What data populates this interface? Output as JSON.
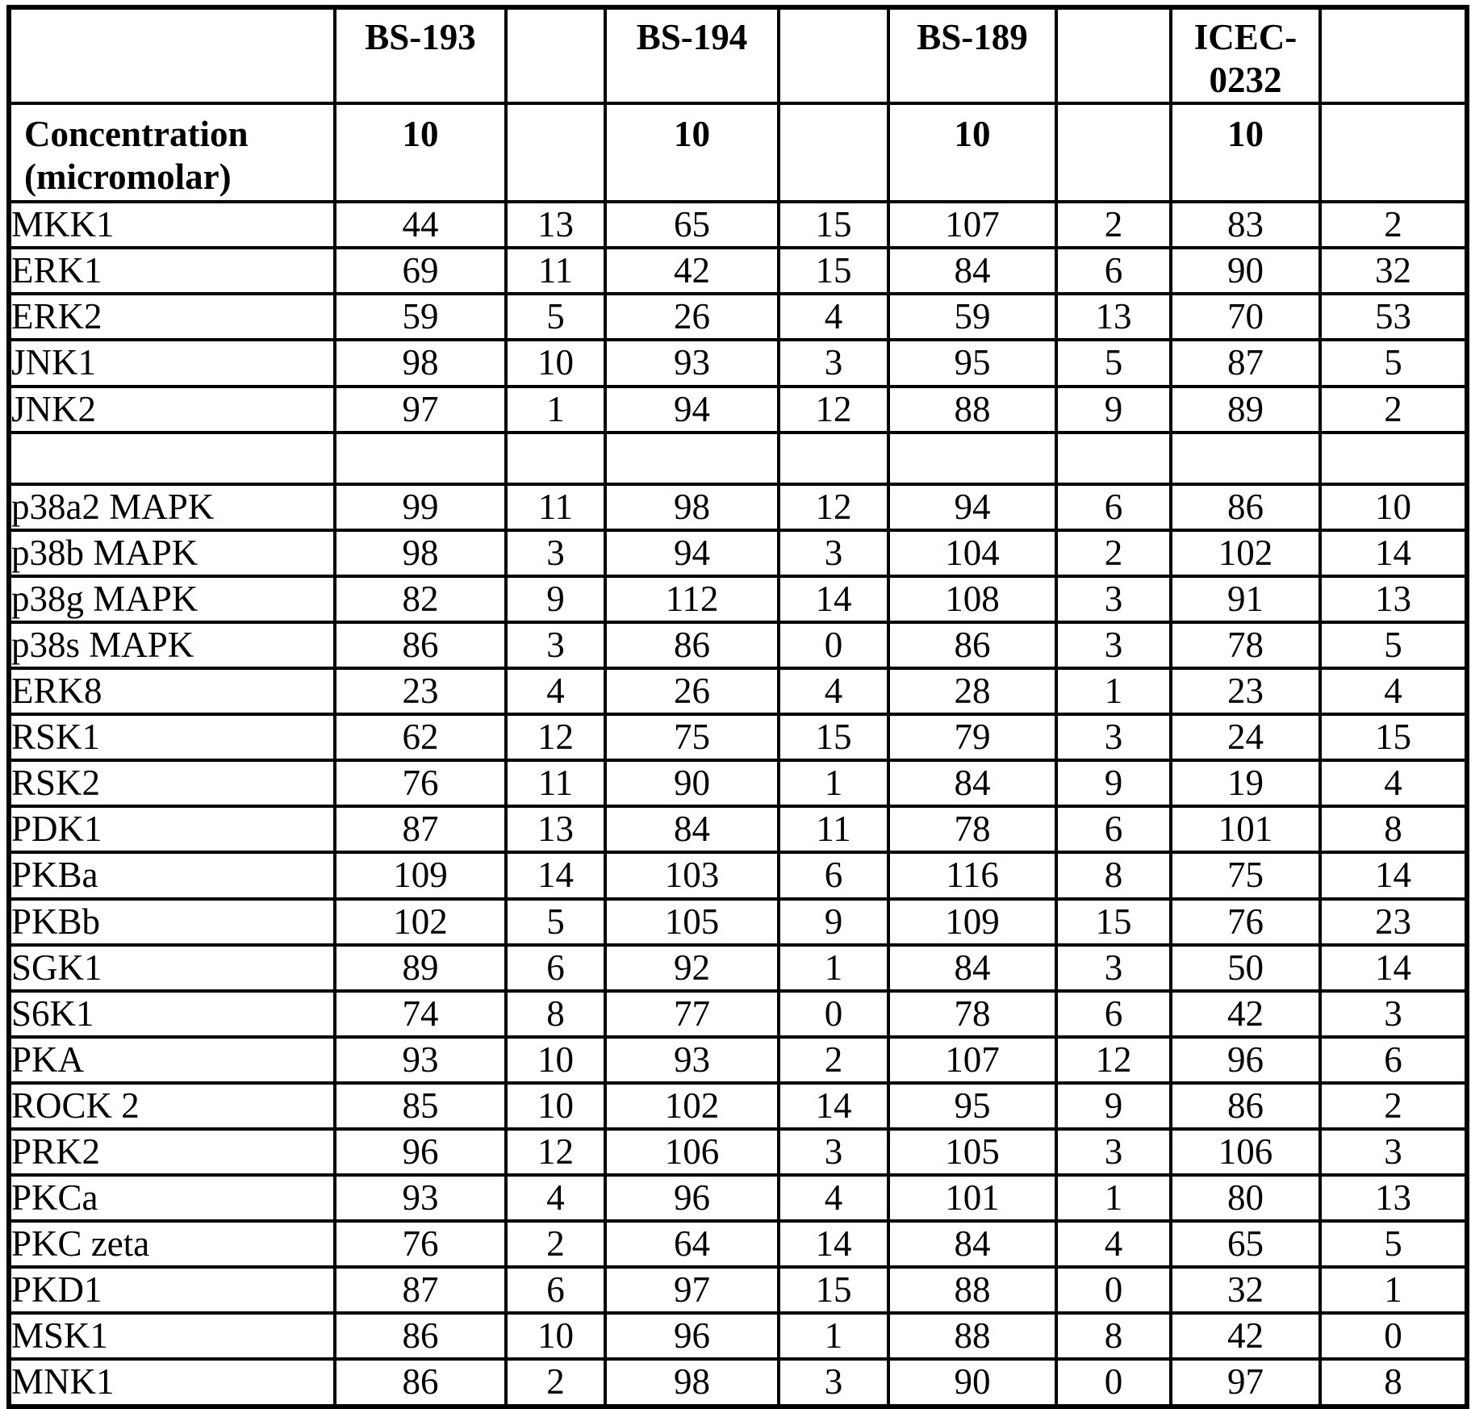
{
  "table": {
    "header_row": [
      "",
      "BS-193",
      "",
      "BS-194",
      "",
      "BS-189",
      "",
      "ICEC-0232",
      ""
    ],
    "concentration": {
      "label": "Concentration (micromolar)",
      "values": [
        "10",
        "",
        "10",
        "",
        "10",
        "",
        "10",
        ""
      ]
    },
    "rows": [
      {
        "kinase": "MKK1",
        "values": [
          "44",
          "13",
          "65",
          "15",
          "107",
          "2",
          "83",
          "2"
        ]
      },
      {
        "kinase": "ERK1",
        "values": [
          "69",
          "11",
          "42",
          "15",
          "84",
          "6",
          "90",
          "32"
        ]
      },
      {
        "kinase": "ERK2",
        "values": [
          "59",
          "5",
          "26",
          "4",
          "59",
          "13",
          "70",
          "53"
        ]
      },
      {
        "kinase": "JNK1",
        "values": [
          "98",
          "10",
          "93",
          "3",
          "95",
          "5",
          "87",
          "5"
        ]
      },
      {
        "kinase": "JNK2",
        "values": [
          "97",
          "1",
          "94",
          "12",
          "88",
          "9",
          "89",
          "2"
        ]
      },
      {
        "kinase": "",
        "values": [
          "",
          "",
          "",
          "",
          "",
          "",
          "",
          ""
        ]
      },
      {
        "kinase": "p38a2 MAPK",
        "values": [
          "99",
          "11",
          "98",
          "12",
          "94",
          "6",
          "86",
          "10"
        ]
      },
      {
        "kinase": "p38b MAPK",
        "values": [
          "98",
          "3",
          "94",
          "3",
          "104",
          "2",
          "102",
          "14"
        ]
      },
      {
        "kinase": "p38g MAPK",
        "values": [
          "82",
          "9",
          "112",
          "14",
          "108",
          "3",
          "91",
          "13"
        ]
      },
      {
        "kinase": "p38s MAPK",
        "values": [
          "86",
          "3",
          "86",
          "0",
          "86",
          "3",
          "78",
          "5"
        ]
      },
      {
        "kinase": "ERK8",
        "values": [
          "23",
          "4",
          "26",
          "4",
          "28",
          "1",
          "23",
          "4"
        ]
      },
      {
        "kinase": "RSK1",
        "values": [
          "62",
          "12",
          "75",
          "15",
          "79",
          "3",
          "24",
          "15"
        ]
      },
      {
        "kinase": "RSK2",
        "values": [
          "76",
          "11",
          "90",
          "1",
          "84",
          "9",
          "19",
          "4"
        ]
      },
      {
        "kinase": "PDK1",
        "values": [
          "87",
          "13",
          "84",
          "11",
          "78",
          "6",
          "101",
          "8"
        ]
      },
      {
        "kinase": "PKBa",
        "values": [
          "109",
          "14",
          "103",
          "6",
          "116",
          "8",
          "75",
          "14"
        ]
      },
      {
        "kinase": "PKBb",
        "values": [
          "102",
          "5",
          "105",
          "9",
          "109",
          "15",
          "76",
          "23"
        ]
      },
      {
        "kinase": "SGK1",
        "values": [
          "89",
          "6",
          "92",
          "1",
          "84",
          "3",
          "50",
          "14"
        ]
      },
      {
        "kinase": "S6K1",
        "values": [
          "74",
          "8",
          "77",
          "0",
          "78",
          "6",
          "42",
          "3"
        ]
      },
      {
        "kinase": "PKA",
        "values": [
          "93",
          "10",
          "93",
          "2",
          "107",
          "12",
          "96",
          "6"
        ]
      },
      {
        "kinase": "ROCK 2",
        "values": [
          "85",
          "10",
          "102",
          "14",
          "95",
          "9",
          "86",
          "2"
        ]
      },
      {
        "kinase": "PRK2",
        "values": [
          "96",
          "12",
          "106",
          "3",
          "105",
          "3",
          "106",
          "3"
        ]
      },
      {
        "kinase": "PKCa",
        "values": [
          "93",
          "4",
          "96",
          "4",
          "101",
          "1",
          "80",
          "13"
        ]
      },
      {
        "kinase": "PKC zeta",
        "values": [
          "76",
          "2",
          "64",
          "14",
          "84",
          "4",
          "65",
          "5"
        ]
      },
      {
        "kinase": "PKD1",
        "values": [
          "87",
          "6",
          "97",
          "15",
          "88",
          "0",
          "32",
          "1"
        ]
      },
      {
        "kinase": "MSK1",
        "values": [
          "86",
          "10",
          "96",
          "1",
          "88",
          "8",
          "42",
          "0"
        ]
      },
      {
        "kinase": "MNK1",
        "values": [
          "86",
          "2",
          "98",
          "3",
          "90",
          "0",
          "97",
          "8"
        ]
      }
    ]
  }
}
